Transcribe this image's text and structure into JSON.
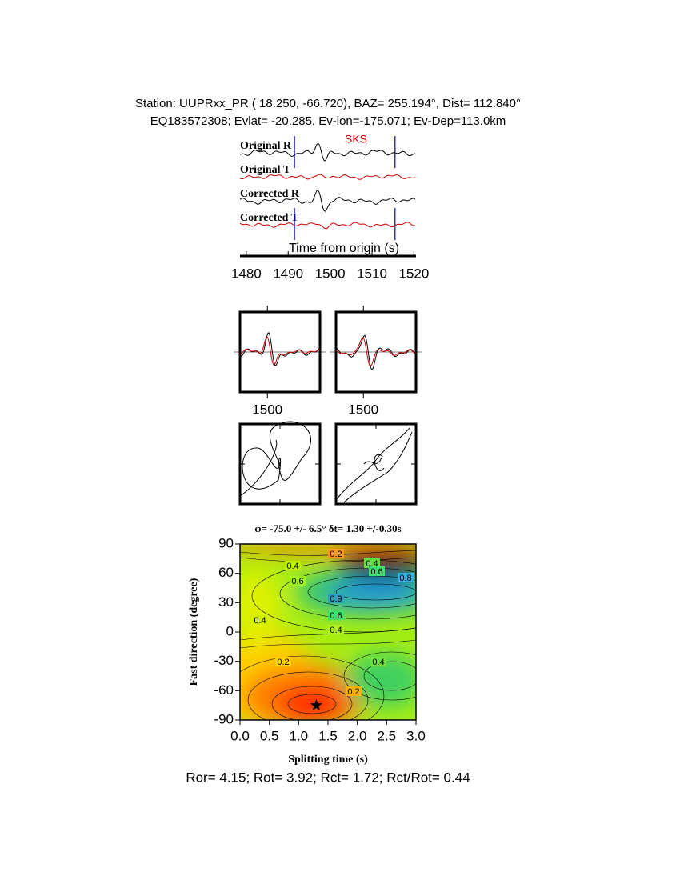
{
  "chart_data": [
    {
      "type": "waveform",
      "title": "Station: UUPRxx_PR (  18.250,  -66.720), BAZ=  255.194°, Dist=  112.840°",
      "subtitle": "EQ183572308; Evlat= -20.285, Ev-lon=-175.071; Ev-Dep=113.0km",
      "annotation": "SKS",
      "series": [
        {
          "name": "Original R",
          "color": "#000000"
        },
        {
          "name": "Original T",
          "color": "#cc0000"
        },
        {
          "name": "Corrected R",
          "color": "#000000"
        },
        {
          "name": "Corrected T",
          "color": "#cc0000"
        }
      ],
      "window": [
        1491.5,
        1515.5
      ],
      "xlabel": "Time from origin (s)",
      "xlim": [
        1478.5,
        1520.5
      ],
      "xticks": [
        1480,
        1490,
        1500,
        1510,
        1520
      ]
    },
    {
      "type": "waveform-box",
      "xlim": [
        1493.5,
        1512.5
      ],
      "xticks": [
        1500
      ]
    },
    {
      "type": "waveform-box",
      "xlim": [
        1493.5,
        1512.5
      ],
      "xticks": [
        1500
      ]
    },
    {
      "type": "contour",
      "title": "φ= -75.0 +/- 6.5° δt= 1.30 +/-0.30s",
      "xlabel": "Splitting time (s)",
      "ylabel": "Fast direction (degree)",
      "xlim": [
        0,
        3
      ],
      "ylim": [
        -90,
        90
      ],
      "xticks": [
        {
          "value": 0,
          "label": "0.0"
        },
        0.5,
        {
          "value": 1,
          "label": "1.0"
        },
        1.5,
        {
          "value": 2,
          "label": "2.0"
        },
        2.5,
        {
          "value": 3,
          "label": "3.0"
        }
      ],
      "yticks": [
        -90,
        -60,
        -30,
        0,
        30,
        60,
        90
      ],
      "best": {
        "x": 1.3,
        "y": -75
      },
      "contour_labels": [
        "0.2",
        "0.4",
        "0.6",
        "0.8",
        "0.4",
        "0.6",
        "0.9",
        "0.4",
        "0.6",
        "0.4",
        "0.2",
        "0.4",
        "0.2"
      ],
      "footer": "Ror= 4.15; Rot= 3.92; Rct= 1.72; Rct/Rot= 0.44"
    }
  ]
}
